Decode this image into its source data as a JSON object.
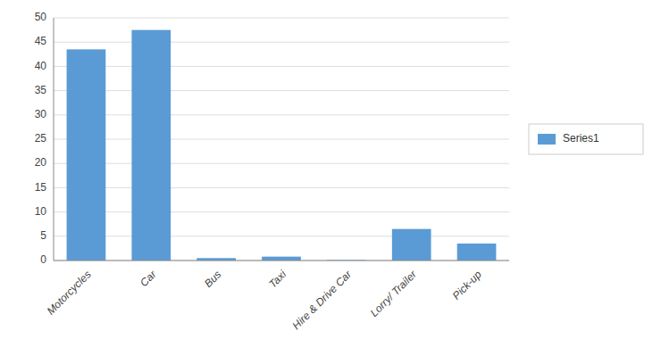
{
  "chart_data": {
    "type": "bar",
    "categories": [
      "Motorcycles",
      "Car",
      "Bus",
      "Taxi",
      "Hire & Drive Car",
      "Lorry/ Trailer",
      "Pick-up"
    ],
    "series": [
      {
        "name": "Series1",
        "color": "#5B9BD5",
        "values": [
          43.5,
          47.5,
          0.5,
          0.8,
          0.1,
          6.5,
          3.5
        ]
      }
    ],
    "ylim": [
      0,
      50
    ],
    "yticks": [
      0,
      5,
      10,
      15,
      20,
      25,
      30,
      35,
      40,
      45,
      50
    ],
    "grid": true,
    "legend": "right"
  }
}
